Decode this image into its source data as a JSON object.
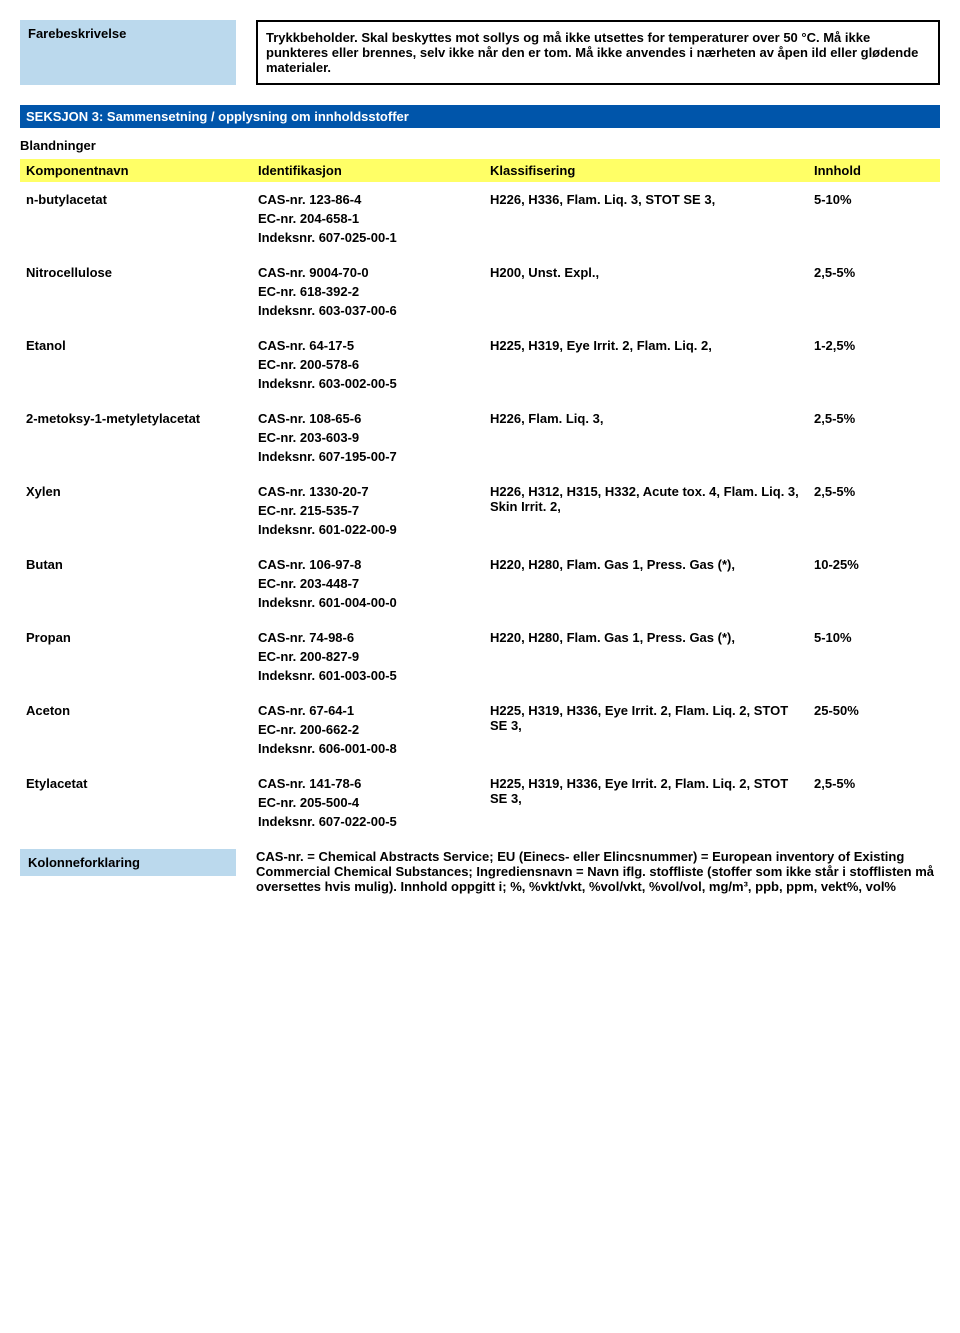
{
  "hazard_label": "Farebeskrivelse",
  "hazard_text": "Trykkbeholder. Skal beskyttes mot sollys og må ikke utsettes for temperaturer over 50 °C. Må ikke punkteres eller brennes, selv ikke når den er tom. Må ikke anvendes i nærheten av åpen ild eller glødende materialer.",
  "section3_title": "SEKSJON 3: Sammensetning / opplysning om innholdsstoffer",
  "blend_heading": "Blandninger",
  "headers": {
    "name": "Komponentnavn",
    "ident": "Identifikasjon",
    "class": "Klassifisering",
    "innh": "Innhold"
  },
  "components": [
    {
      "name": "n-butylacetat",
      "cas": "CAS-nr. 123-86-4",
      "ec": "EC-nr. 204-658-1",
      "idx": "Indeksnr. 607-025-00-1",
      "class": "H226, H336, Flam. Liq. 3, STOT SE 3,",
      "innh": "5-10%"
    },
    {
      "name": "Nitrocellulose",
      "cas": "CAS-nr. 9004-70-0",
      "ec": "EC-nr. 618-392-2",
      "idx": "Indeksnr. 603-037-00-6",
      "class": "H200, Unst. Expl.,",
      "innh": "2,5-5%"
    },
    {
      "name": "Etanol",
      "cas": "CAS-nr. 64-17-5",
      "ec": "EC-nr. 200-578-6",
      "idx": "Indeksnr. 603-002-00-5",
      "class": "H225, H319, Eye Irrit. 2, Flam. Liq. 2,",
      "innh": "1-2,5%"
    },
    {
      "name": "2-metoksy-1-metyletylacetat",
      "cas": "CAS-nr. 108-65-6",
      "ec": "EC-nr. 203-603-9",
      "idx": "Indeksnr. 607-195-00-7",
      "class": "H226, Flam. Liq. 3,",
      "innh": "2,5-5%"
    },
    {
      "name": "Xylen",
      "cas": "CAS-nr. 1330-20-7",
      "ec": "EC-nr. 215-535-7",
      "idx": "Indeksnr. 601-022-00-9",
      "class": "H226, H312, H315, H332, Acute tox. 4, Flam. Liq. 3, Skin Irrit. 2,",
      "innh": "2,5-5%"
    },
    {
      "name": "Butan",
      "cas": "CAS-nr. 106-97-8",
      "ec": "EC-nr. 203-448-7",
      "idx": "Indeksnr. 601-004-00-0",
      "class": "H220, H280, Flam. Gas 1, Press. Gas (*),",
      "innh": "10-25%"
    },
    {
      "name": "Propan",
      "cas": "CAS-nr. 74-98-6",
      "ec": "EC-nr. 200-827-9",
      "idx": "Indeksnr. 601-003-00-5",
      "class": "H220, H280, Flam. Gas 1, Press. Gas (*),",
      "innh": "5-10%"
    },
    {
      "name": "Aceton",
      "cas": "CAS-nr. 67-64-1",
      "ec": "EC-nr. 200-662-2",
      "idx": "Indeksnr. 606-001-00-8",
      "class": "H225, H319, H336, Eye Irrit. 2, Flam. Liq. 2, STOT SE 3,",
      "innh": "25-50%"
    },
    {
      "name": "Etylacetat",
      "cas": "CAS-nr. 141-78-6",
      "ec": "EC-nr. 205-500-4",
      "idx": "Indeksnr. 607-022-00-5",
      "class": "H225, H319, H336, Eye Irrit. 2, Flam. Liq. 2, STOT SE 3,",
      "innh": "2,5-5%"
    }
  ],
  "footer_label": "Kolonneforklaring",
  "footer_text": "CAS-nr. = Chemical Abstracts Service; EU (Einecs- eller Elincsnummer) = European inventory of Existing Commercial Chemical Substances; Ingrediensnavn = Navn iflg. stoffliste (stoffer som ikke står i stofflisten må oversettes hvis mulig). Innhold oppgitt i; %, %vkt/vkt, %vol/vkt, %vol/vol, mg/m³, ppb, ppm, vekt%, vol%"
}
